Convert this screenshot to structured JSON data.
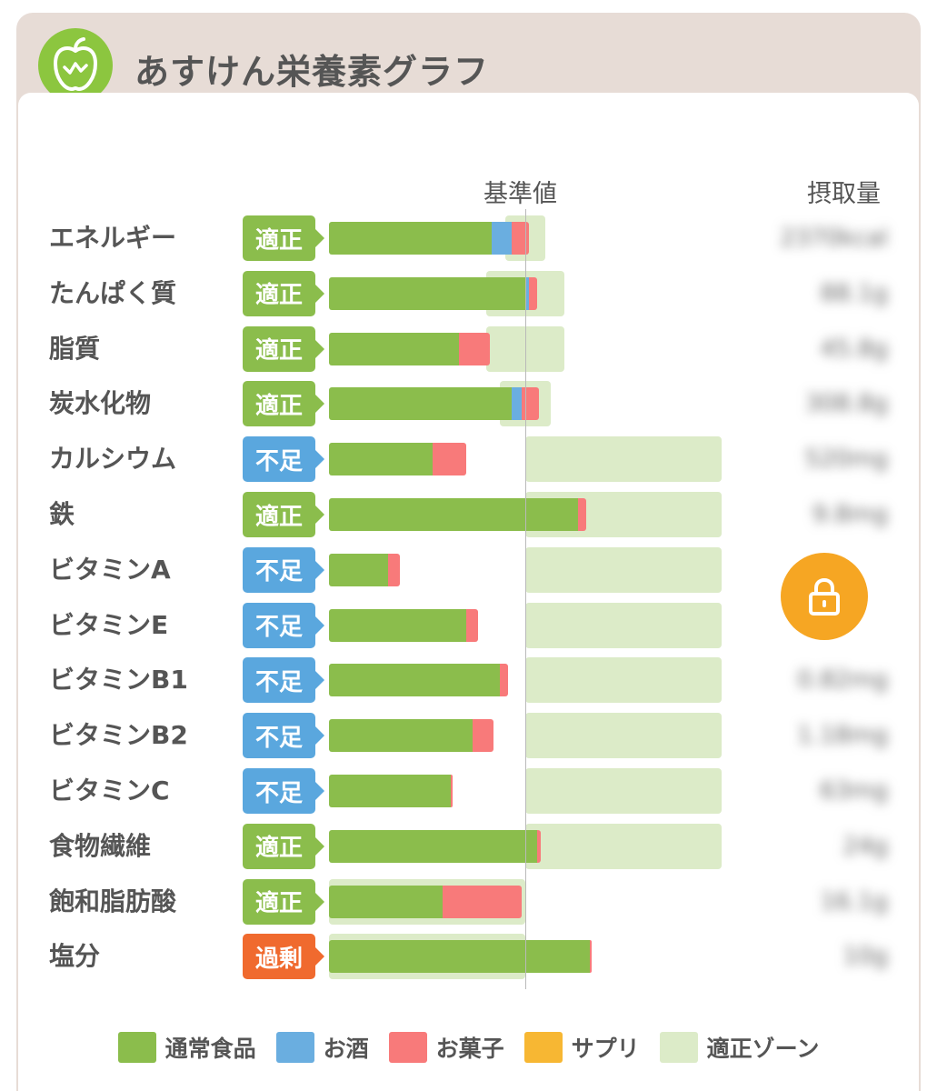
{
  "app": {
    "title": "あすけん栄養素グラフ",
    "logo_icon": "apple-scale-icon"
  },
  "colors": {
    "normal_food": "#8bbd4c",
    "alcohol": "#6aaee0",
    "sweets": "#f87a7a",
    "supplement": "#f7b733",
    "proper_zone": "#dcebc8",
    "status_proper": "#8bbd4c",
    "status_lack": "#5aa7de",
    "status_excess": "#f06a2e",
    "lock": "#f6a623"
  },
  "chart_data": {
    "type": "bar",
    "stacked": true,
    "orientation": "horizontal",
    "reference_label": "基準値",
    "value_label": "摂取量",
    "legend_position": "bottom-center",
    "series": [
      {
        "name": "通常食品",
        "key": "normal_food"
      },
      {
        "name": "お酒",
        "key": "alcohol"
      },
      {
        "name": "お菓子",
        "key": "sweets"
      },
      {
        "name": "サプリ",
        "key": "supplement"
      },
      {
        "name": "適正ゾーン",
        "key": "proper_zone"
      }
    ],
    "rows": [
      {
        "name": "エネルギー",
        "status": "適正",
        "status_type": "proper",
        "normal_food": 83,
        "alcohol": 10,
        "sweets": 9,
        "supplement": 0,
        "zone": [
          90,
          110
        ],
        "value": "2370kcal"
      },
      {
        "name": "たんぱく質",
        "status": "適正",
        "status_type": "proper",
        "normal_food": 100,
        "alcohol": 2,
        "sweets": 4,
        "supplement": 0,
        "zone": [
          80,
          120
        ],
        "value": "88.1g"
      },
      {
        "name": "脂質",
        "status": "適正",
        "status_type": "proper",
        "normal_food": 66,
        "alcohol": 0,
        "sweets": 16,
        "supplement": 0,
        "zone": [
          80,
          120
        ],
        "value": "45.8g"
      },
      {
        "name": "炭水化物",
        "status": "適正",
        "status_type": "proper",
        "normal_food": 93,
        "alcohol": 5,
        "sweets": 9,
        "supplement": 0,
        "zone": [
          87,
          113
        ],
        "value": "308.8g"
      },
      {
        "name": "カルシウム",
        "status": "不足",
        "status_type": "lack",
        "normal_food": 53,
        "alcohol": 0,
        "sweets": 17,
        "supplement": 0,
        "zone": [
          100,
          200
        ],
        "value": "520mg"
      },
      {
        "name": "鉄",
        "status": "適正",
        "status_type": "proper",
        "normal_food": 127,
        "alcohol": 0,
        "sweets": 4,
        "supplement": 0,
        "zone": [
          100,
          200
        ],
        "value": "9.8mg"
      },
      {
        "name": "ビタミンA",
        "status": "不足",
        "status_type": "lack",
        "normal_food": 30,
        "alcohol": 0,
        "sweets": 6,
        "supplement": 0,
        "zone": [
          100,
          200
        ],
        "value": ""
      },
      {
        "name": "ビタミンE",
        "status": "不足",
        "status_type": "lack",
        "normal_food": 70,
        "alcohol": 0,
        "sweets": 6,
        "supplement": 0,
        "zone": [
          100,
          200
        ],
        "value": ""
      },
      {
        "name": "ビタミンB1",
        "status": "不足",
        "status_type": "lack",
        "normal_food": 87,
        "alcohol": 0,
        "sweets": 4,
        "supplement": 0,
        "zone": [
          100,
          200
        ],
        "value": "0.82mg"
      },
      {
        "name": "ビタミンB2",
        "status": "不足",
        "status_type": "lack",
        "normal_food": 73,
        "alcohol": 0,
        "sweets": 11,
        "supplement": 0,
        "zone": [
          100,
          200
        ],
        "value": "1.18mg"
      },
      {
        "name": "ビタミンC",
        "status": "不足",
        "status_type": "lack",
        "normal_food": 62,
        "alcohol": 0,
        "sweets": 1,
        "supplement": 0,
        "zone": [
          100,
          200
        ],
        "value": "63mg"
      },
      {
        "name": "食物繊維",
        "status": "適正",
        "status_type": "proper",
        "normal_food": 106,
        "alcohol": 0,
        "sweets": 2,
        "supplement": 0,
        "zone": [
          100,
          200
        ],
        "value": "24g"
      },
      {
        "name": "飽和脂肪酸",
        "status": "適正",
        "status_type": "proper",
        "normal_food": 58,
        "alcohol": 0,
        "sweets": 40,
        "supplement": 0,
        "zone": [
          0,
          100
        ],
        "value": "16.1g"
      },
      {
        "name": "塩分",
        "status": "過剰",
        "status_type": "excess",
        "normal_food": 133,
        "alcohol": 0,
        "sweets": 1,
        "supplement": 0,
        "zone": [
          0,
          100
        ],
        "value": "10g"
      }
    ]
  },
  "lock": {
    "icon": "lock-icon"
  }
}
